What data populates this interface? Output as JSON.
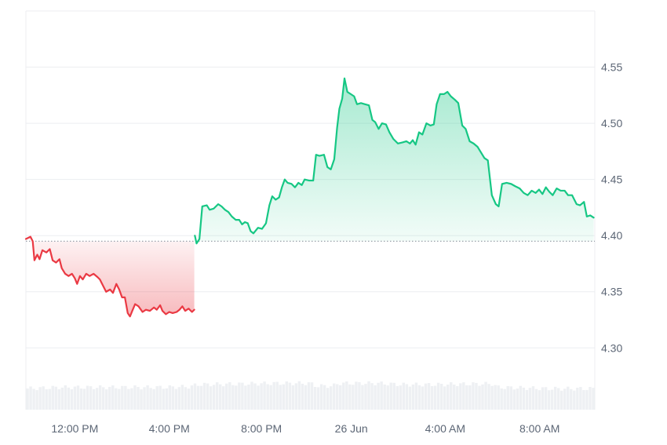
{
  "chart_data": {
    "type": "area",
    "baseline": 4.395,
    "ylim": [
      4.245,
      4.6
    ],
    "xlim": [
      0,
      100
    ],
    "grid": true,
    "colors": {
      "up_line": "#16c784",
      "down_line": "#ea3943",
      "volume": "#eef0f3",
      "grid": "#eceef1",
      "baseline_dots": "#9aa1ab",
      "tick_text": "#5c6675"
    },
    "y_ticks": [
      {
        "value": 4.3,
        "label": "4.30"
      },
      {
        "value": 4.35,
        "label": "4.35"
      },
      {
        "value": 4.4,
        "label": "4.40"
      },
      {
        "value": 4.45,
        "label": "4.45"
      },
      {
        "value": 4.5,
        "label": "4.50"
      },
      {
        "value": 4.55,
        "label": "4.55"
      }
    ],
    "x_ticks": [
      {
        "x": 8.6,
        "label": "12:00 PM"
      },
      {
        "x": 25.2,
        "label": "4:00 PM"
      },
      {
        "x": 41.4,
        "label": "8:00 PM"
      },
      {
        "x": 57.2,
        "label": "26 Jun"
      },
      {
        "x": 73.7,
        "label": "4:00 AM"
      },
      {
        "x": 90.3,
        "label": "8:00 AM"
      }
    ],
    "series": [
      {
        "values": [
          [
            0,
            4.397
          ],
          [
            0.8,
            4.399
          ],
          [
            1.2,
            4.395
          ],
          [
            1.5,
            4.378
          ],
          [
            2.0,
            4.383
          ],
          [
            2.4,
            4.379
          ],
          [
            2.9,
            4.387
          ],
          [
            3.6,
            4.385
          ],
          [
            4.2,
            4.388
          ],
          [
            4.7,
            4.378
          ],
          [
            5.3,
            4.376
          ],
          [
            5.9,
            4.379
          ],
          [
            6.3,
            4.371
          ],
          [
            6.9,
            4.366
          ],
          [
            7.5,
            4.364
          ],
          [
            8.1,
            4.366
          ],
          [
            8.6,
            4.362
          ],
          [
            9.0,
            4.357
          ],
          [
            9.5,
            4.364
          ],
          [
            10.0,
            4.361
          ],
          [
            10.6,
            4.366
          ],
          [
            11.2,
            4.364
          ],
          [
            11.9,
            4.366
          ],
          [
            12.6,
            4.363
          ],
          [
            13.0,
            4.361
          ],
          [
            13.6,
            4.355
          ],
          [
            14.1,
            4.35
          ],
          [
            14.8,
            4.352
          ],
          [
            15.3,
            4.349
          ],
          [
            15.9,
            4.357
          ],
          [
            16.4,
            4.352
          ],
          [
            16.9,
            4.345
          ],
          [
            17.4,
            4.345
          ],
          [
            17.9,
            4.331
          ],
          [
            18.3,
            4.328
          ],
          [
            18.7,
            4.333
          ],
          [
            19.2,
            4.339
          ],
          [
            19.8,
            4.337
          ],
          [
            20.5,
            4.332
          ],
          [
            21.1,
            4.334
          ],
          [
            21.8,
            4.333
          ],
          [
            22.5,
            4.336
          ],
          [
            23.0,
            4.334
          ],
          [
            23.6,
            4.338
          ],
          [
            24.0,
            4.333
          ],
          [
            24.6,
            4.33
          ],
          [
            25.2,
            4.332
          ],
          [
            25.8,
            4.331
          ],
          [
            26.5,
            4.332
          ],
          [
            27.0,
            4.334
          ],
          [
            27.5,
            4.337
          ],
          [
            28.0,
            4.333
          ],
          [
            28.6,
            4.335
          ],
          [
            29.2,
            4.332
          ],
          [
            29.6,
            4.334
          ]
        ],
        "color": "#ea3943"
      },
      {
        "values": [
          [
            29.7,
            4.4
          ],
          [
            30.0,
            4.393
          ],
          [
            30.5,
            4.397
          ],
          [
            31.0,
            4.426
          ],
          [
            31.8,
            4.427
          ],
          [
            32.3,
            4.423
          ],
          [
            33.0,
            4.424
          ],
          [
            33.8,
            4.428
          ],
          [
            34.4,
            4.426
          ],
          [
            35.0,
            4.423
          ],
          [
            35.6,
            4.421
          ],
          [
            36.2,
            4.417
          ],
          [
            36.9,
            4.414
          ],
          [
            37.5,
            4.414
          ],
          [
            38.0,
            4.41
          ],
          [
            38.5,
            4.412
          ],
          [
            39.0,
            4.411
          ],
          [
            39.5,
            4.404
          ],
          [
            40.0,
            4.402
          ],
          [
            40.8,
            4.407
          ],
          [
            41.5,
            4.406
          ],
          [
            42.2,
            4.411
          ],
          [
            42.8,
            4.427
          ],
          [
            43.3,
            4.435
          ],
          [
            43.9,
            4.432
          ],
          [
            44.5,
            4.434
          ],
          [
            45.0,
            4.443
          ],
          [
            45.5,
            4.45
          ],
          [
            46.0,
            4.447
          ],
          [
            46.7,
            4.446
          ],
          [
            47.3,
            4.443
          ],
          [
            47.9,
            4.447
          ],
          [
            48.5,
            4.445
          ],
          [
            49.0,
            4.45
          ],
          [
            49.8,
            4.449
          ],
          [
            50.5,
            4.449
          ],
          [
            51.0,
            4.472
          ],
          [
            51.6,
            4.471
          ],
          [
            52.4,
            4.472
          ],
          [
            53.0,
            4.461
          ],
          [
            53.6,
            4.459
          ],
          [
            54.2,
            4.468
          ],
          [
            54.7,
            4.496
          ],
          [
            55.1,
            4.513
          ],
          [
            55.6,
            4.522
          ],
          [
            56.0,
            4.54
          ],
          [
            56.5,
            4.528
          ],
          [
            57.1,
            4.526
          ],
          [
            57.7,
            4.524
          ],
          [
            58.2,
            4.517
          ],
          [
            58.9,
            4.518
          ],
          [
            59.6,
            4.517
          ],
          [
            60.3,
            4.516
          ],
          [
            60.9,
            4.503
          ],
          [
            61.4,
            4.501
          ],
          [
            62.0,
            4.495
          ],
          [
            62.6,
            4.5
          ],
          [
            63.3,
            4.499
          ],
          [
            63.9,
            4.492
          ],
          [
            64.6,
            4.486
          ],
          [
            65.4,
            4.482
          ],
          [
            66.2,
            4.483
          ],
          [
            66.9,
            4.484
          ],
          [
            67.5,
            4.482
          ],
          [
            68.0,
            4.485
          ],
          [
            68.5,
            4.481
          ],
          [
            69.1,
            4.492
          ],
          [
            69.7,
            4.49
          ],
          [
            70.4,
            4.5
          ],
          [
            71.1,
            4.498
          ],
          [
            71.7,
            4.499
          ],
          [
            72.2,
            4.517
          ],
          [
            72.8,
            4.526
          ],
          [
            73.5,
            4.526
          ],
          [
            74.1,
            4.528
          ],
          [
            74.7,
            4.524
          ],
          [
            75.4,
            4.521
          ],
          [
            76.0,
            4.518
          ],
          [
            76.7,
            4.498
          ],
          [
            77.3,
            4.495
          ],
          [
            78.0,
            4.484
          ],
          [
            78.7,
            4.482
          ],
          [
            79.4,
            4.479
          ],
          [
            80.0,
            4.474
          ],
          [
            80.6,
            4.469
          ],
          [
            81.2,
            4.467
          ],
          [
            81.9,
            4.436
          ],
          [
            82.6,
            4.428
          ],
          [
            83.1,
            4.426
          ],
          [
            83.7,
            4.446
          ],
          [
            84.5,
            4.447
          ],
          [
            85.3,
            4.446
          ],
          [
            86.0,
            4.444
          ],
          [
            86.8,
            4.442
          ],
          [
            87.5,
            4.438
          ],
          [
            88.2,
            4.436
          ],
          [
            88.9,
            4.44
          ],
          [
            89.6,
            4.438
          ],
          [
            90.2,
            4.441
          ],
          [
            90.8,
            4.437
          ],
          [
            91.4,
            4.443
          ],
          [
            92.0,
            4.439
          ],
          [
            92.6,
            4.436
          ],
          [
            93.3,
            4.442
          ],
          [
            94.0,
            4.44
          ],
          [
            94.7,
            4.44
          ],
          [
            95.3,
            4.436
          ],
          [
            96.0,
            4.436
          ],
          [
            96.8,
            4.428
          ],
          [
            97.4,
            4.427
          ],
          [
            98.1,
            4.43
          ],
          [
            98.6,
            4.417
          ],
          [
            99.2,
            4.418
          ],
          [
            99.8,
            4.416
          ]
        ],
        "color": "#16c784"
      }
    ],
    "volume": [
      [
        0,
        0.31
      ],
      [
        6,
        0.33
      ],
      [
        12,
        0.33
      ],
      [
        18,
        0.33
      ],
      [
        24,
        0.33
      ],
      [
        29,
        0.34
      ],
      [
        30,
        0.37
      ],
      [
        38,
        0.38
      ],
      [
        44,
        0.39
      ],
      [
        50,
        0.39
      ],
      [
        51,
        0.35
      ],
      [
        54,
        0.35
      ],
      [
        55,
        0.39
      ],
      [
        62,
        0.39
      ],
      [
        66,
        0.37
      ],
      [
        72,
        0.37
      ],
      [
        78,
        0.38
      ],
      [
        82,
        0.38
      ],
      [
        83,
        0.33
      ],
      [
        88,
        0.32
      ],
      [
        92,
        0.31
      ],
      [
        100,
        0.31
      ]
    ]
  }
}
